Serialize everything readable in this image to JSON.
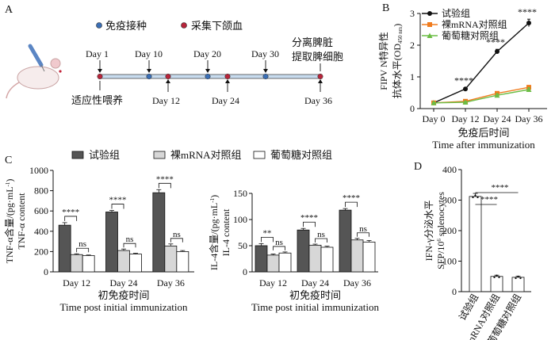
{
  "panels": {
    "a": "A",
    "b": "B",
    "c": "C",
    "d": "D"
  },
  "timeline": {
    "legend_immunize": "免疫接种",
    "legend_blood": "采集下颌血",
    "acclimate": "适应性喂养",
    "harvest_line1": "分离脾脏",
    "harvest_line2": "提取脾细胞",
    "days_top": [
      "Day 1",
      "Day 10",
      "Day 20",
      "Day 30"
    ],
    "days_bottom": [
      "Day 12",
      "Day 24",
      "Day 36"
    ],
    "immunize_color": "#3b6fb6",
    "blood_color": "#b8253a"
  },
  "chart_data": [
    {
      "panel": "B",
      "type": "line",
      "x": [
        "Day 0",
        "Day 12",
        "Day 24",
        "Day 36"
      ],
      "series": [
        {
          "name": "试验组",
          "values": [
            0.18,
            0.62,
            1.8,
            2.7
          ],
          "errors": [
            0.02,
            0.04,
            0.07,
            0.12
          ],
          "color": "#111111",
          "marker": "circle"
        },
        {
          "name": "裸mRNA对照组",
          "values": [
            0.18,
            0.23,
            0.48,
            0.67
          ],
          "errors": [
            0.02,
            0.03,
            0.05,
            0.06
          ],
          "color": "#f07c1e",
          "marker": "square"
        },
        {
          "name": "葡萄糖对照组",
          "values": [
            0.18,
            0.2,
            0.42,
            0.6
          ],
          "errors": [
            0.02,
            0.03,
            0.05,
            0.06
          ],
          "color": "#6cbd45",
          "marker": "triangle"
        }
      ],
      "ylim": [
        0,
        3
      ],
      "yticks": [
        0,
        1,
        2,
        3
      ],
      "ylabel_cn": "FIPV N特异性",
      "ylabel_cn2": "抗体水平",
      "ylabel_unit": "(OD",
      "ylabel_sub": "450 nm",
      "ylabel_close": ")",
      "xlabel_cn": "免疫后时间",
      "xlabel_en": "Time after immunization",
      "annotations": [
        "****",
        "****",
        "****"
      ]
    },
    {
      "panel": "C-left",
      "type": "bar",
      "categories": [
        "Day 12",
        "Day 24",
        "Day 36"
      ],
      "series": [
        {
          "name": "试验组",
          "values": [
            460,
            590,
            780
          ],
          "errors": [
            25,
            15,
            30
          ]
        },
        {
          "name": "裸mRNA对照组",
          "values": [
            170,
            210,
            255
          ],
          "errors": [
            8,
            15,
            20
          ]
        },
        {
          "name": "葡萄糖对照组",
          "values": [
            160,
            175,
            200
          ],
          "errors": [
            6,
            8,
            10
          ]
        }
      ],
      "ylim": [
        0,
        1000
      ],
      "yticks": [
        0,
        200,
        400,
        600,
        800,
        1000
      ],
      "ylabel_cn": "TNF-α含量/(pg·mL",
      "ylabel_sup": "-1",
      "ylabel_close": ")",
      "ylabel_en": "TNF-α content",
      "xlabel_cn": "初免疫时间",
      "xlabel_en": "Time post initial immunization",
      "annotations": {
        "sig": "****",
        "ns": "ns"
      }
    },
    {
      "panel": "C-right",
      "type": "bar",
      "categories": [
        "Day 12",
        "Day 24",
        "Day 36"
      ],
      "series": [
        {
          "name": "试验组",
          "values": [
            50,
            80,
            118
          ],
          "errors": [
            4,
            3,
            3
          ]
        },
        {
          "name": "裸mRNA对照组",
          "values": [
            32,
            51,
            61
          ],
          "errors": [
            2,
            2,
            3
          ]
        },
        {
          "name": "葡萄糖对照组",
          "values": [
            36,
            47,
            57
          ],
          "errors": [
            2,
            2,
            3
          ]
        }
      ],
      "ylim": [
        0,
        150
      ],
      "yticks": [
        0,
        50,
        100,
        150
      ],
      "ylabel_cn": "IL-4含量/(pg·mL",
      "ylabel_sup": "-1",
      "ylabel_close": ")",
      "ylabel_en": "IL-4 content",
      "xlabel_cn": "初免疫时间",
      "xlabel_en": "Time post initial immunization",
      "annotations": {
        "sig1": "**",
        "sig": "****",
        "ns": "ns"
      }
    },
    {
      "panel": "D",
      "type": "bar",
      "categories": [
        "试验组",
        "裸mRNA对照组",
        "葡萄糖对照组"
      ],
      "values": [
        312,
        50,
        47
      ],
      "errors": [
        10,
        4,
        4
      ],
      "ylim": [
        0,
        400
      ],
      "yticks": [
        0,
        100,
        200,
        300,
        400
      ],
      "ylabel_cn": "IFN-γ分泌水平",
      "ylabel_en": "SFP/10",
      "ylabel_sup": "6",
      "ylabel_en2": " splenocytes",
      "annotations": [
        "****",
        "****"
      ]
    }
  ],
  "legend_c": [
    "试验组",
    "裸mRNA对照组",
    "葡萄糖对照组"
  ],
  "colors": {
    "exp": "#555555",
    "naked": "#d7d7d7",
    "glucose": "#ffffff",
    "axis": "#111111"
  }
}
